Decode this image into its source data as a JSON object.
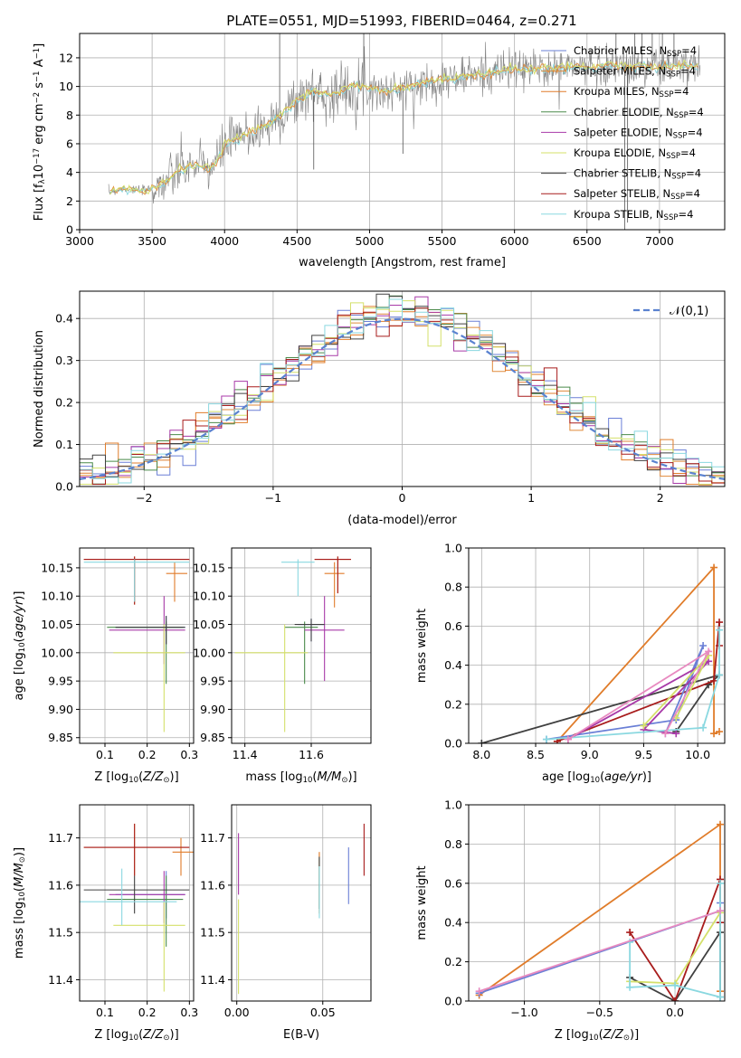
{
  "figure": {
    "title": "PLATE=0551, MJD=51993, FIBERID=0464, z=0.271"
  },
  "colors": {
    "series": [
      "#6a7fd6",
      "#e08a3a",
      "#e07c2a",
      "#4a8a4a",
      "#a83aa8",
      "#d4e06a",
      "#404040",
      "#a81c1c",
      "#8ad8e0"
    ],
    "extra": {
      "pink": "#e88ac0",
      "data": "#808080"
    }
  },
  "legend_spectrum": [
    {
      "text": "Chabrier MILES, N",
      "sub": "SSP",
      "tail": "=4"
    },
    {
      "text": "Salpeter MILES, N",
      "sub": "SSP",
      "tail": "=4"
    },
    {
      "text": "Kroupa MILES, N",
      "sub": "SSP",
      "tail": "=4"
    },
    {
      "text": "Chabrier ELODIE, N",
      "sub": "SSP",
      "tail": "=4"
    },
    {
      "text": "Salpeter ELODIE, N",
      "sub": "SSP",
      "tail": "=4"
    },
    {
      "text": "Kroupa ELODIE, N",
      "sub": "SSP",
      "tail": "=4"
    },
    {
      "text": "Chabrier STELIB, N",
      "sub": "SSP",
      "tail": "=4"
    },
    {
      "text": "Salpeter STELIB, N",
      "sub": "SSP",
      "tail": "=4"
    },
    {
      "text": "Kroupa STELIB, N",
      "sub": "SSP",
      "tail": "=4"
    }
  ],
  "chart_data": [
    {
      "type": "line",
      "panel": "spectrum",
      "title": "PLATE=0551, MJD=51993, FIBERID=0464, z=0.271",
      "xlabel": "wavelength [Angstrom, rest frame]",
      "ylabel": "Flux [f_λ 10^-17 erg cm^-2 s^-1 A^-1]",
      "xlim": [
        3000,
        7450
      ],
      "ylim": [
        0,
        13.7
      ],
      "xticks": [
        3000,
        3500,
        4000,
        4500,
        5000,
        5500,
        6000,
        6500,
        7000
      ],
      "yticks": [
        0,
        2,
        4,
        6,
        8,
        10,
        12
      ],
      "continuum": {
        "x": [
          3200,
          3300,
          3450,
          3520,
          3600,
          3700,
          3800,
          3900,
          3950,
          4000,
          4100,
          4200,
          4300,
          4400,
          4500,
          4600,
          4700,
          4800,
          4900,
          5000,
          5100,
          5200,
          5300,
          5400,
          5500,
          5600,
          5700,
          5800,
          5900,
          6000,
          6100,
          6200,
          6300,
          6400,
          6500,
          6600,
          6700,
          6800,
          6900,
          7000,
          7100,
          7200,
          7280
        ],
        "y": [
          2.6,
          2.9,
          2.7,
          3.0,
          3.4,
          4.2,
          4.5,
          4.3,
          4.8,
          5.9,
          6.4,
          6.9,
          7.3,
          8.1,
          9.0,
          9.7,
          9.4,
          9.6,
          10.1,
          10.0,
          9.6,
          9.8,
          10.0,
          10.3,
          10.5,
          10.6,
          10.8,
          10.9,
          11.1,
          11.2,
          11.2,
          11.3,
          11.2,
          11.4,
          11.3,
          11.4,
          11.5,
          11.3,
          11.4,
          11.3,
          11.5,
          11.4,
          11.3
        ]
      }
    },
    {
      "type": "line",
      "panel": "residual-histogram",
      "xlabel": "(data-model)/error",
      "ylabel": "Normed distribution",
      "xlim": [
        -2.5,
        2.5
      ],
      "ylim": [
        0,
        0.465
      ],
      "xticks": [
        -2,
        -1,
        0,
        1,
        2
      ],
      "yticks": [
        0.0,
        0.1,
        0.2,
        0.3,
        0.4
      ],
      "reference_label": "𝒩(0,1)"
    },
    {
      "type": "scatter",
      "panel": "age-vs-Z",
      "xlabel": "Z [log10(Z/Z⊙)]",
      "ylabel": "age [log10(age/yr)]",
      "xlim": [
        0.04,
        0.31
      ],
      "ylim": [
        9.84,
        10.185
      ],
      "xticks": [
        0.1,
        0.2,
        0.3
      ],
      "yticks": [
        9.85,
        9.9,
        9.95,
        10.0,
        10.05,
        10.1,
        10.15
      ],
      "points": [
        {
          "x": 0.245,
          "y": 10.045,
          "xerr": [
            0.12,
            0.045
          ],
          "yerr": [
            0.03,
            0.02
          ]
        },
        {
          "x": 0.17,
          "y": 10.165,
          "xerr": [
            0.12,
            0.13
          ],
          "yerr": [
            0.08,
            0.005
          ]
        },
        {
          "x": 0.265,
          "y": 10.14,
          "xerr": [
            0.02,
            0.03
          ],
          "yerr": [
            0.05,
            0.02
          ]
        },
        {
          "x": 0.245,
          "y": 10.045,
          "xerr": [
            0.14,
            0.04
          ],
          "yerr": [
            0.1,
            0.01
          ]
        },
        {
          "x": 0.24,
          "y": 10.04,
          "xerr": [
            0.13,
            0.05
          ],
          "yerr": [
            0.06,
            0.06
          ]
        },
        {
          "x": 0.24,
          "y": 10.0,
          "xerr": [
            0.12,
            0.05
          ],
          "yerr": [
            0.14,
            0.05
          ]
        },
        {
          "x": 0.245,
          "y": 10.045,
          "xerr": [
            0.12,
            0.045
          ],
          "yerr": [
            0.03,
            0.02
          ]
        },
        {
          "x": 0.17,
          "y": 10.165,
          "xerr": [
            0.12,
            0.13
          ],
          "yerr": [
            0.08,
            0.005
          ]
        },
        {
          "x": 0.17,
          "y": 10.16,
          "xerr": [
            0.12,
            0.13
          ],
          "yerr": [
            0.07,
            0.005
          ]
        }
      ]
    },
    {
      "type": "scatter",
      "panel": "age-vs-mass",
      "xlabel": "mass [log10(M/M⊙)]",
      "ylabel": "",
      "xlim": [
        11.36,
        11.78
      ],
      "ylim": [
        9.84,
        10.185
      ],
      "xticks": [
        11.4,
        11.6
      ],
      "yticks": [
        9.85,
        9.9,
        9.95,
        10.0,
        10.05,
        10.1,
        10.15
      ],
      "points": [
        {
          "x": 11.6,
          "y": 10.05,
          "xerr": [
            0.04,
            0.04
          ],
          "yerr": [
            0.03,
            0.01
          ]
        },
        {
          "x": 11.68,
          "y": 10.165,
          "xerr": [
            0.07,
            0.04
          ],
          "yerr": [
            0.06,
            0.005
          ]
        },
        {
          "x": 11.67,
          "y": 10.14,
          "xerr": [
            0.03,
            0.03
          ],
          "yerr": [
            0.06,
            0.02
          ]
        },
        {
          "x": 11.58,
          "y": 10.045,
          "xerr": [
            0.06,
            0.04
          ],
          "yerr": [
            0.1,
            0.01
          ]
        },
        {
          "x": 11.64,
          "y": 10.04,
          "xerr": [
            0.06,
            0.06
          ],
          "yerr": [
            0.09,
            0.06
          ]
        },
        {
          "x": 11.52,
          "y": 10.0,
          "xerr": [
            0.15,
            0.07
          ],
          "yerr": [
            0.14,
            0.05
          ]
        },
        {
          "x": 11.6,
          "y": 10.05,
          "xerr": [
            0.05,
            0.04
          ],
          "yerr": [
            0.03,
            0.01
          ]
        },
        {
          "x": 11.68,
          "y": 10.165,
          "xerr": [
            0.07,
            0.04
          ],
          "yerr": [
            0.06,
            0.005
          ]
        },
        {
          "x": 11.56,
          "y": 10.16,
          "xerr": [
            0.05,
            0.05
          ],
          "yerr": [
            0.06,
            0.005
          ]
        }
      ]
    },
    {
      "type": "line",
      "panel": "mass-weight-vs-age",
      "xlabel": "age [log10(age/yr)]",
      "ylabel": "mass weight",
      "xlim": [
        7.88,
        10.25
      ],
      "ylim": [
        0,
        1.0
      ],
      "xticks": [
        8.0,
        8.5,
        9.0,
        9.5,
        10.0
      ],
      "yticks": [
        0.0,
        0.2,
        0.4,
        0.6,
        0.8,
        1.0
      ]
    },
    {
      "type": "scatter",
      "panel": "mass-vs-Z",
      "xlabel": "Z [log10(Z/Z⊙)]",
      "ylabel": "mass [log10(M/M⊙)]",
      "xlim": [
        0.04,
        0.31
      ],
      "ylim": [
        11.355,
        11.77
      ],
      "xticks": [
        0.1,
        0.2,
        0.3
      ],
      "yticks": [
        11.4,
        11.5,
        11.6,
        11.7
      ],
      "points": [
        {
          "x": 0.245,
          "y": 11.58,
          "xerr": [
            0.12,
            0.045
          ],
          "yerr": [
            0.05,
            0.05
          ]
        },
        {
          "x": 0.17,
          "y": 11.68,
          "xerr": [
            0.12,
            0.13
          ],
          "yerr": [
            0.06,
            0.05
          ]
        },
        {
          "x": 0.28,
          "y": 11.67,
          "xerr": [
            0.02,
            0.03
          ],
          "yerr": [
            0.05,
            0.03
          ]
        },
        {
          "x": 0.245,
          "y": 11.57,
          "xerr": [
            0.14,
            0.04
          ],
          "yerr": [
            0.1,
            0.05
          ]
        },
        {
          "x": 0.24,
          "y": 11.58,
          "xerr": [
            0.13,
            0.05
          ],
          "yerr": [
            0.06,
            0.05
          ]
        },
        {
          "x": 0.24,
          "y": 11.515,
          "xerr": [
            0.12,
            0.05
          ],
          "yerr": [
            0.14,
            0.05
          ]
        },
        {
          "x": 0.17,
          "y": 11.59,
          "xerr": [
            0.12,
            0.13
          ],
          "yerr": [
            0.05,
            0.03
          ]
        },
        {
          "x": 0.17,
          "y": 11.68,
          "xerr": [
            0.12,
            0.13
          ],
          "yerr": [
            0.06,
            0.05
          ]
        },
        {
          "x": 0.14,
          "y": 11.565,
          "xerr": [
            0.12,
            0.13
          ],
          "yerr": [
            0.05,
            0.07
          ]
        }
      ]
    },
    {
      "type": "scatter",
      "panel": "mass-vs-EBV",
      "xlabel": "E(B-V)",
      "ylabel": "",
      "xlim": [
        -0.003,
        0.078
      ],
      "ylim": [
        11.355,
        11.77
      ],
      "xticks": [
        0.0,
        0.05
      ],
      "yticks": [
        11.4,
        11.5,
        11.6,
        11.7
      ],
      "points": [
        {
          "x": 0.065,
          "y": 11.62,
          "yerr": [
            0.06,
            0.06
          ]
        },
        {
          "x": 0.048,
          "y": 11.6,
          "yerr": [
            0.06,
            0.07
          ]
        },
        {
          "x": 0.048,
          "y": 11.6,
          "yerr": [
            0.06,
            0.07
          ]
        },
        {
          "x": 0.048,
          "y": 11.6,
          "yerr": [
            0.05,
            0.06
          ]
        },
        {
          "x": 0.001,
          "y": 11.64,
          "yerr": [
            0.06,
            0.07
          ]
        },
        {
          "x": 0.001,
          "y": 11.47,
          "yerr": [
            0.1,
            0.1
          ]
        },
        {
          "x": 0.048,
          "y": 11.6,
          "yerr": [
            0.05,
            0.06
          ]
        },
        {
          "x": 0.074,
          "y": 11.67,
          "yerr": [
            0.05,
            0.06
          ]
        },
        {
          "x": 0.048,
          "y": 11.58,
          "yerr": [
            0.05,
            0.06
          ]
        }
      ]
    },
    {
      "type": "line",
      "panel": "mass-weight-vs-Z",
      "xlabel": "Z [log10(Z/Z⊙)]",
      "ylabel": "mass weight",
      "xlim": [
        -1.37,
        0.33
      ],
      "ylim": [
        0,
        1.0
      ],
      "xticks": [
        -1.0,
        -0.5,
        0.0
      ],
      "yticks": [
        0.0,
        0.2,
        0.4,
        0.6,
        0.8,
        1.0
      ]
    }
  ]
}
